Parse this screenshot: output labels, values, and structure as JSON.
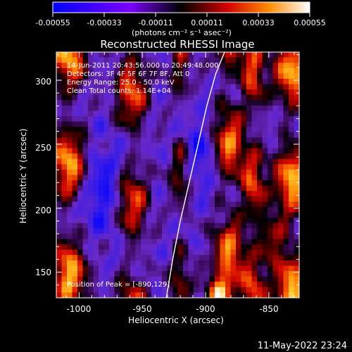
{
  "chart_data": {
    "type": "heatmap",
    "title": "Reconstructed RHESSI Image",
    "xlabel": "Heliocentric X (arcsec)",
    "ylabel": "Heliocentric Y (arcsec)",
    "xlim": [
      -1018,
      -826
    ],
    "ylim": [
      130,
      322
    ],
    "xticks": [
      -1000,
      -950,
      -900,
      -850
    ],
    "yticks": [
      150,
      200,
      250,
      300
    ],
    "colorbar": {
      "ticks": [
        "-0.00055",
        "-0.00033",
        "-0.00011",
        "0.00011",
        "0.00033",
        "0.00055"
      ],
      "units": "(photons cm⁻² s⁻¹ asec⁻²)",
      "range": [
        -0.00055,
        0.00055
      ]
    },
    "annotations": [
      "14-Jun-2011 20:43:56.000 to 20:49:48.000",
      "Detectors: 3F 4F 5F 6F 7F 8F, Att 0",
      "Energy Range: 25.0 - 50.0 keV",
      "Clean    Total counts: 1.14E+04"
    ],
    "peak_label": "Position of Peak = [-890,129]",
    "limb_curve": {
      "x": [
        -931,
        -926,
        -920,
        -913,
        -906,
        -899,
        -892,
        -885
      ],
      "y": [
        130,
        160,
        190,
        220,
        250,
        280,
        305,
        322
      ]
    }
  },
  "footer": {
    "date": "11-May-2022 23:24"
  }
}
